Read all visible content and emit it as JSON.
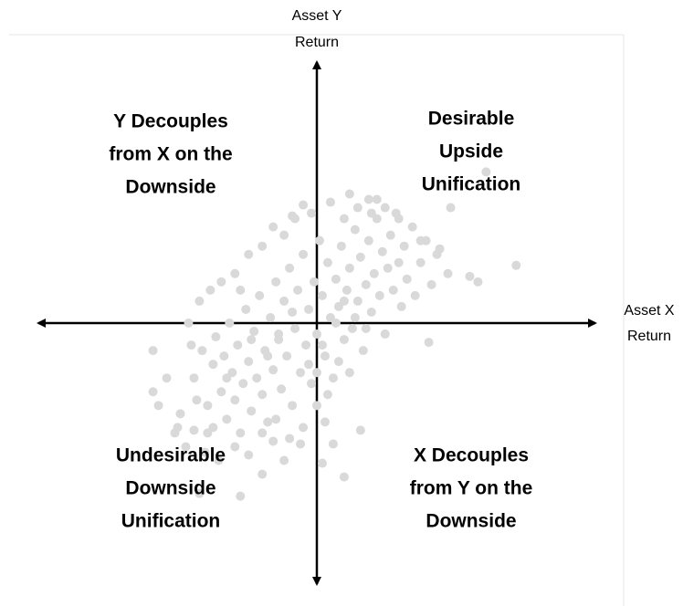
{
  "chart_data": {
    "type": "scatter",
    "y_label": [
      "Asset Y",
      "Return"
    ],
    "x_label": [
      "Asset X",
      "Return"
    ],
    "quadrant_labels": {
      "top_right": [
        "Desirable",
        "Upside",
        "Unification"
      ],
      "top_left": [
        "Y Decouples",
        "from X on the",
        "Downside"
      ],
      "bottom_left": [
        "Undesirable",
        "Downside",
        "Unification"
      ],
      "bottom_right": [
        "X Decouples",
        "from Y on the",
        "Downside"
      ]
    },
    "color": "#d9d9d9",
    "xlim": [
      -102,
      102
    ],
    "ylim": [
      -95,
      95
    ],
    "x": [
      -45,
      -42,
      -40,
      -38,
      -37,
      -35,
      -34,
      -33,
      -32,
      -31,
      -30,
      -29,
      -28,
      -27,
      -26,
      -25,
      -24,
      -23,
      -22,
      -21,
      -20,
      -19,
      -18,
      -17,
      -16,
      -15,
      -14,
      -13,
      -12,
      -11,
      -10,
      -9,
      -8,
      -7,
      -6,
      -5,
      -4,
      -3,
      -2,
      -1,
      0,
      1,
      2,
      3,
      4,
      5,
      6,
      7,
      8,
      9,
      10,
      11,
      12,
      13,
      14,
      15,
      16,
      17,
      18,
      19,
      20,
      21,
      22,
      23,
      24,
      25,
      26,
      27,
      28,
      29,
      30,
      31,
      32,
      33,
      35,
      36,
      38,
      40,
      42,
      44,
      -50,
      -52,
      -48,
      -46,
      -44,
      -41,
      -36,
      -30,
      -25,
      -20,
      -15,
      -10,
      -5,
      0,
      3,
      6,
      -60,
      -55,
      -58,
      -47,
      -43,
      -39,
      -35,
      -30,
      -25,
      -20,
      -12,
      -8,
      -2,
      5,
      10,
      15,
      20,
      25,
      30,
      -20,
      -12,
      0,
      2,
      -3,
      4,
      8,
      12,
      -6,
      -14,
      -18,
      7,
      10,
      14,
      18,
      -9,
      -24,
      -28,
      -33,
      -38,
      62,
      73,
      49,
      59,
      41,
      10,
      2,
      -28,
      -43,
      -60,
      -51,
      -45,
      -40,
      -16,
      16,
      12,
      19,
      22,
      -16,
      -9,
      -5,
      38,
      45,
      56,
      48
    ],
    "values": [
      -20,
      -10,
      -30,
      -15,
      -5,
      -25,
      -12,
      -35,
      0,
      -18,
      -28,
      -8,
      -40,
      -22,
      5,
      -14,
      -32,
      -3,
      -20,
      10,
      -26,
      -10,
      -36,
      2,
      -17,
      15,
      -6,
      -24,
      8,
      -12,
      20,
      -30,
      -2,
      12,
      -18,
      25,
      -8,
      5,
      -22,
      15,
      -4,
      30,
      10,
      -12,
      22,
      2,
      -20,
      16,
      6,
      28,
      -6,
      12,
      20,
      -2,
      34,
      8,
      24,
      -10,
      14,
      30,
      4,
      18,
      38,
      10,
      26,
      -4,
      20,
      32,
      12,
      40,
      22,
      6,
      28,
      16,
      35,
      10,
      22,
      30,
      14,
      25,
      -33,
      -40,
      -45,
      -8,
      -28,
      -47,
      -50,
      -45,
      -48,
      -40,
      -35,
      -42,
      -38,
      -30,
      -36,
      -44,
      -10,
      -20,
      -30,
      0,
      8,
      12,
      15,
      18,
      25,
      28,
      32,
      38,
      40,
      44,
      38,
      42,
      40,
      42,
      38,
      -55,
      -50,
      -18,
      -8,
      -15,
      -26,
      -14,
      -18,
      -44,
      -4,
      -12,
      0,
      8,
      2,
      -2,
      4,
      -6,
      12,
      -20,
      -38,
      55,
      21,
      42,
      15,
      -7,
      -56,
      -51,
      -63,
      -62,
      -25,
      -38,
      -39,
      -40,
      -43,
      -39,
      47,
      45,
      45,
      35,
      39,
      43,
      30,
      27,
      17,
      18
    ]
  }
}
